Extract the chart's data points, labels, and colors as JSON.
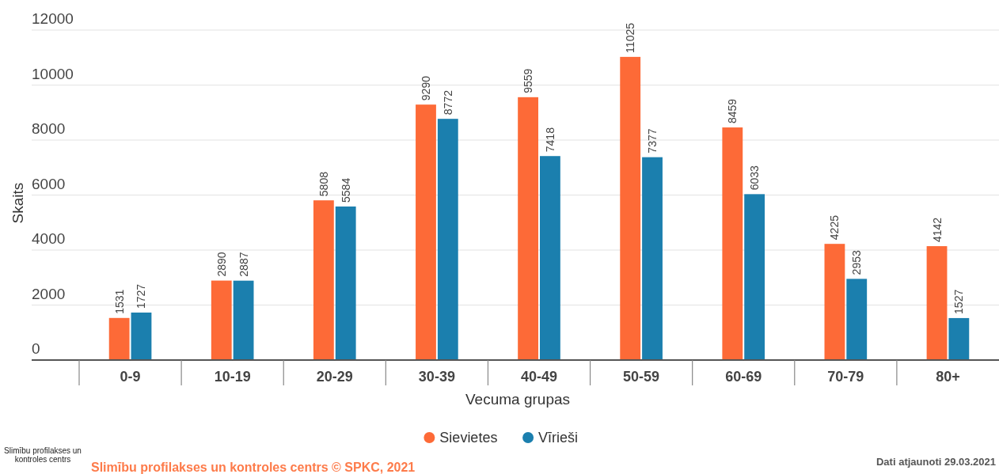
{
  "chart_data": {
    "type": "bar",
    "xlabel": "Vecuma grupas",
    "ylabel": "Skaits",
    "categories": [
      "0-9",
      "10-19",
      "20-29",
      "30-39",
      "40-49",
      "50-59",
      "60-69",
      "70-79",
      "80+"
    ],
    "series": [
      {
        "name": "Sievietes",
        "color": "#fd6a37",
        "values": [
          1531,
          2890,
          5808,
          9290,
          9559,
          11025,
          8459,
          4225,
          4142
        ]
      },
      {
        "name": "Vīrieši",
        "color": "#1b7fae",
        "values": [
          1727,
          2887,
          5584,
          8772,
          7418,
          7377,
          6033,
          2953,
          1527
        ]
      }
    ],
    "ylim": [
      0,
      12000
    ],
    "yticks": [
      0,
      2000,
      4000,
      6000,
      8000,
      10000,
      12000
    ],
    "grid": "y",
    "legend": "bottom",
    "data_labels": true,
    "annotations": [
      "Slimību profilakses un\nkontroles centrs",
      "Slimību profilakses un kontroles centrs © SPKC, 2021",
      "Dati atjaunoti 29.03.2021"
    ]
  }
}
